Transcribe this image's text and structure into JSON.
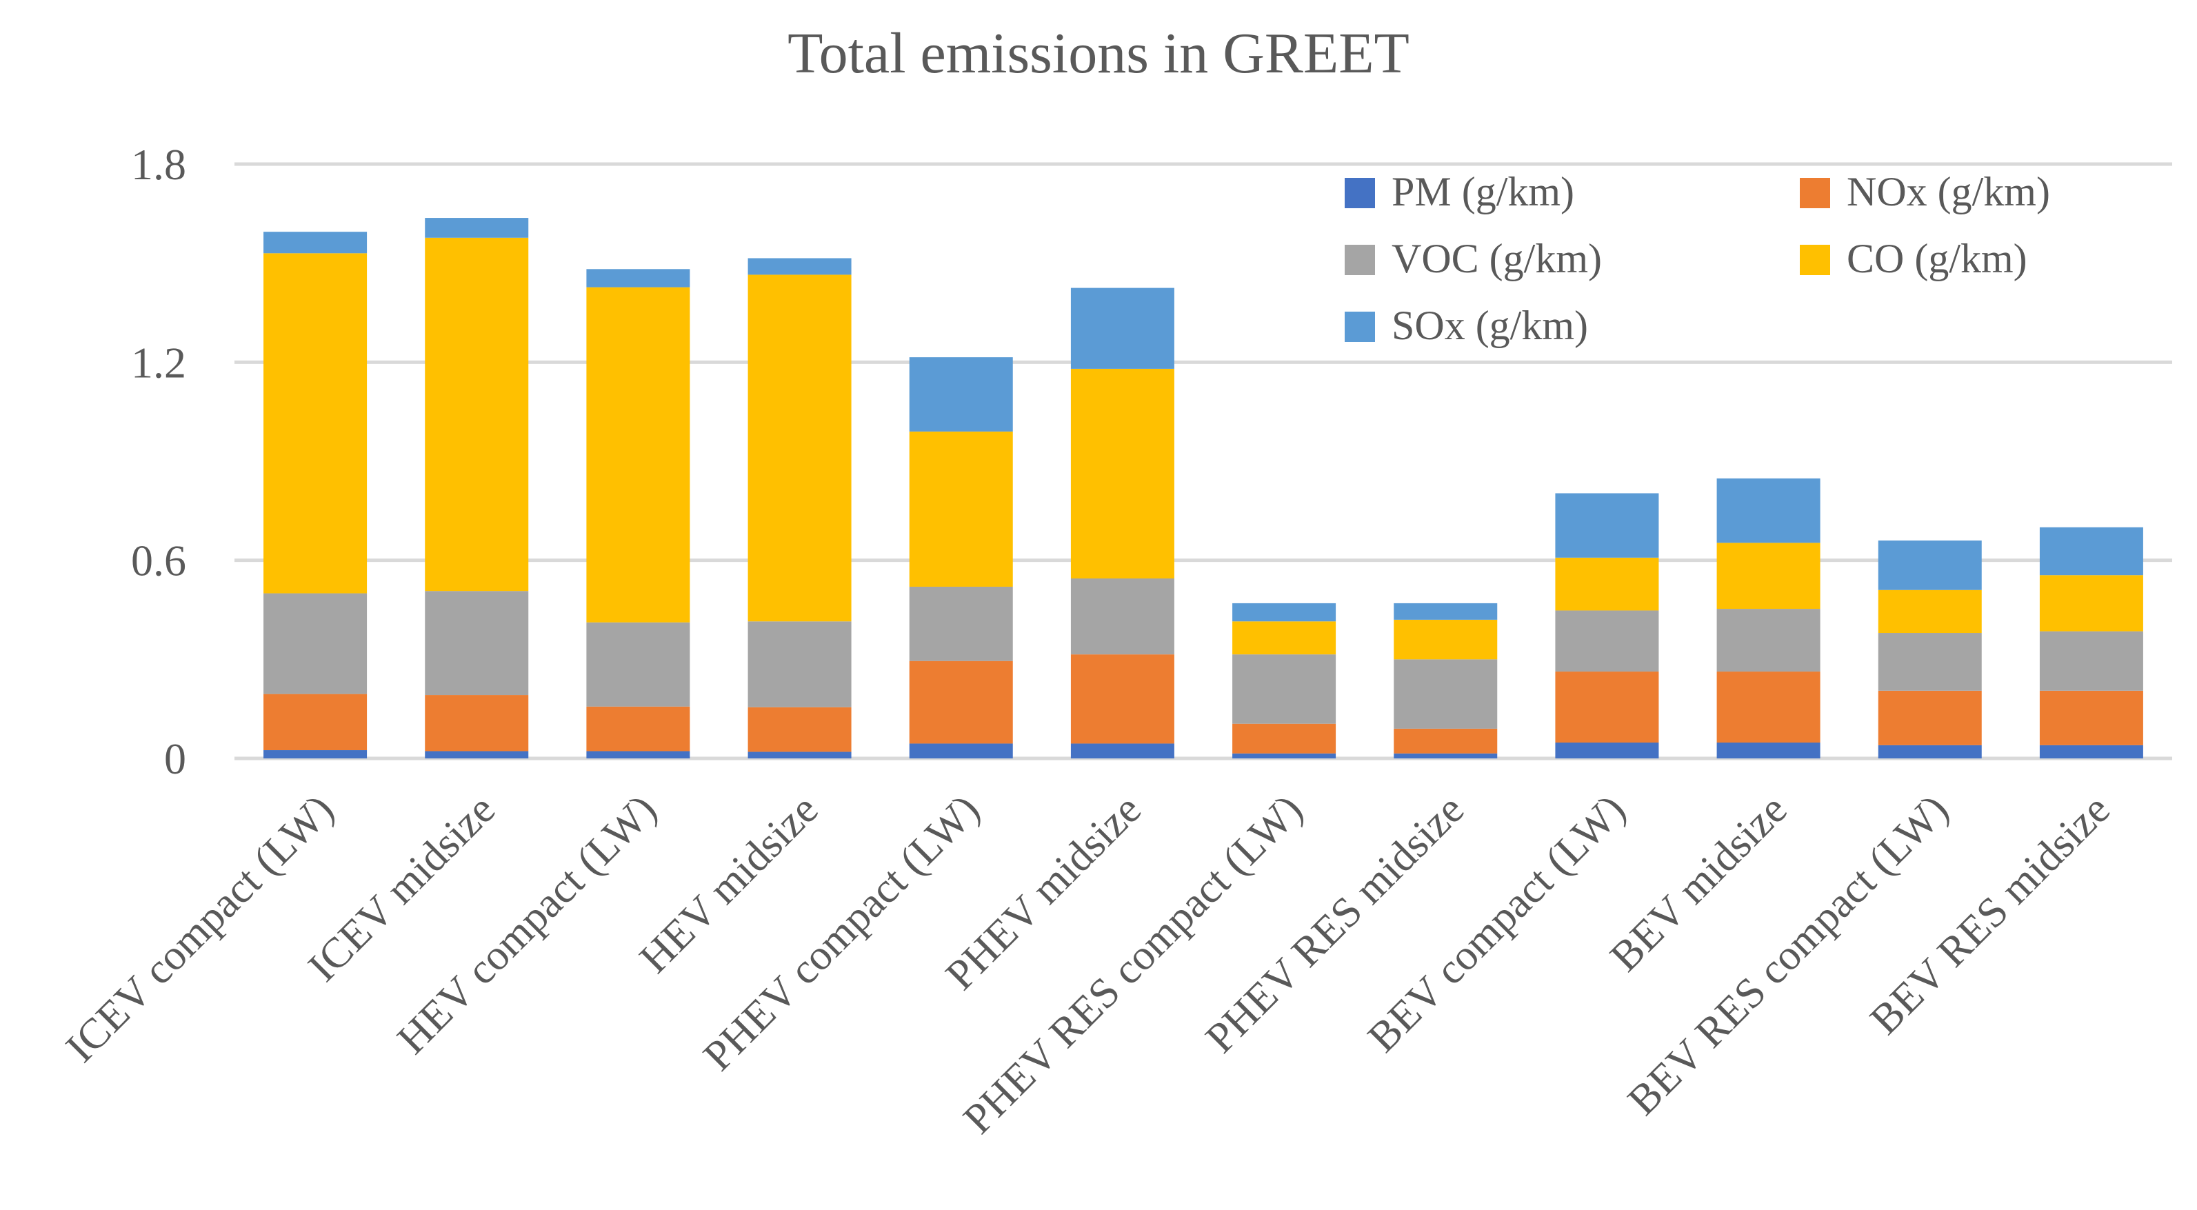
{
  "chart_data": {
    "type": "bar",
    "stacked": true,
    "title": "Total emissions in GREET",
    "xlabel": "",
    "ylabel": "",
    "ylim": [
      0,
      1.8
    ],
    "yticks": [
      0,
      0.6,
      1.2,
      1.8
    ],
    "ytick_labels": [
      "0",
      "0.6",
      "1.2",
      "1.8"
    ],
    "grid": true,
    "legend_position": "top-right",
    "categories": [
      "ICEV compact (LW)",
      "ICEV midsize",
      "HEV compact (LW)",
      "HEV midsize",
      "PHEV compact (LW)",
      "PHEV midsize",
      "PHEV RES compact (LW)",
      "PHEV RES midsize",
      "BEV compact (LW)",
      "BEV midsize",
      "BEV RES compact (LW)",
      "BEV RES midsize"
    ],
    "series": [
      {
        "name": "PM (g/km)",
        "color": "#4472C4",
        "values": [
          0.025,
          0.022,
          0.022,
          0.02,
          0.045,
          0.045,
          0.015,
          0.015,
          0.048,
          0.048,
          0.04,
          0.04
        ]
      },
      {
        "name": "NOx (g/km)",
        "color": "#ED7D31",
        "values": [
          0.17,
          0.17,
          0.135,
          0.135,
          0.25,
          0.27,
          0.09,
          0.075,
          0.215,
          0.215,
          0.165,
          0.165
        ]
      },
      {
        "name": "VOC (g/km)",
        "color": "#A5A5A5",
        "values": [
          0.305,
          0.315,
          0.255,
          0.26,
          0.225,
          0.23,
          0.21,
          0.21,
          0.185,
          0.19,
          0.175,
          0.18
        ]
      },
      {
        "name": "CO (g/km)",
        "color": "#FFC000",
        "values": [
          1.03,
          1.07,
          1.015,
          1.05,
          0.47,
          0.635,
          0.1,
          0.12,
          0.16,
          0.2,
          0.13,
          0.17
        ]
      },
      {
        "name": "SOx (g/km)",
        "color": "#5B9BD5",
        "values": [
          0.065,
          0.06,
          0.055,
          0.05,
          0.225,
          0.245,
          0.055,
          0.05,
          0.195,
          0.195,
          0.15,
          0.145
        ]
      }
    ]
  }
}
